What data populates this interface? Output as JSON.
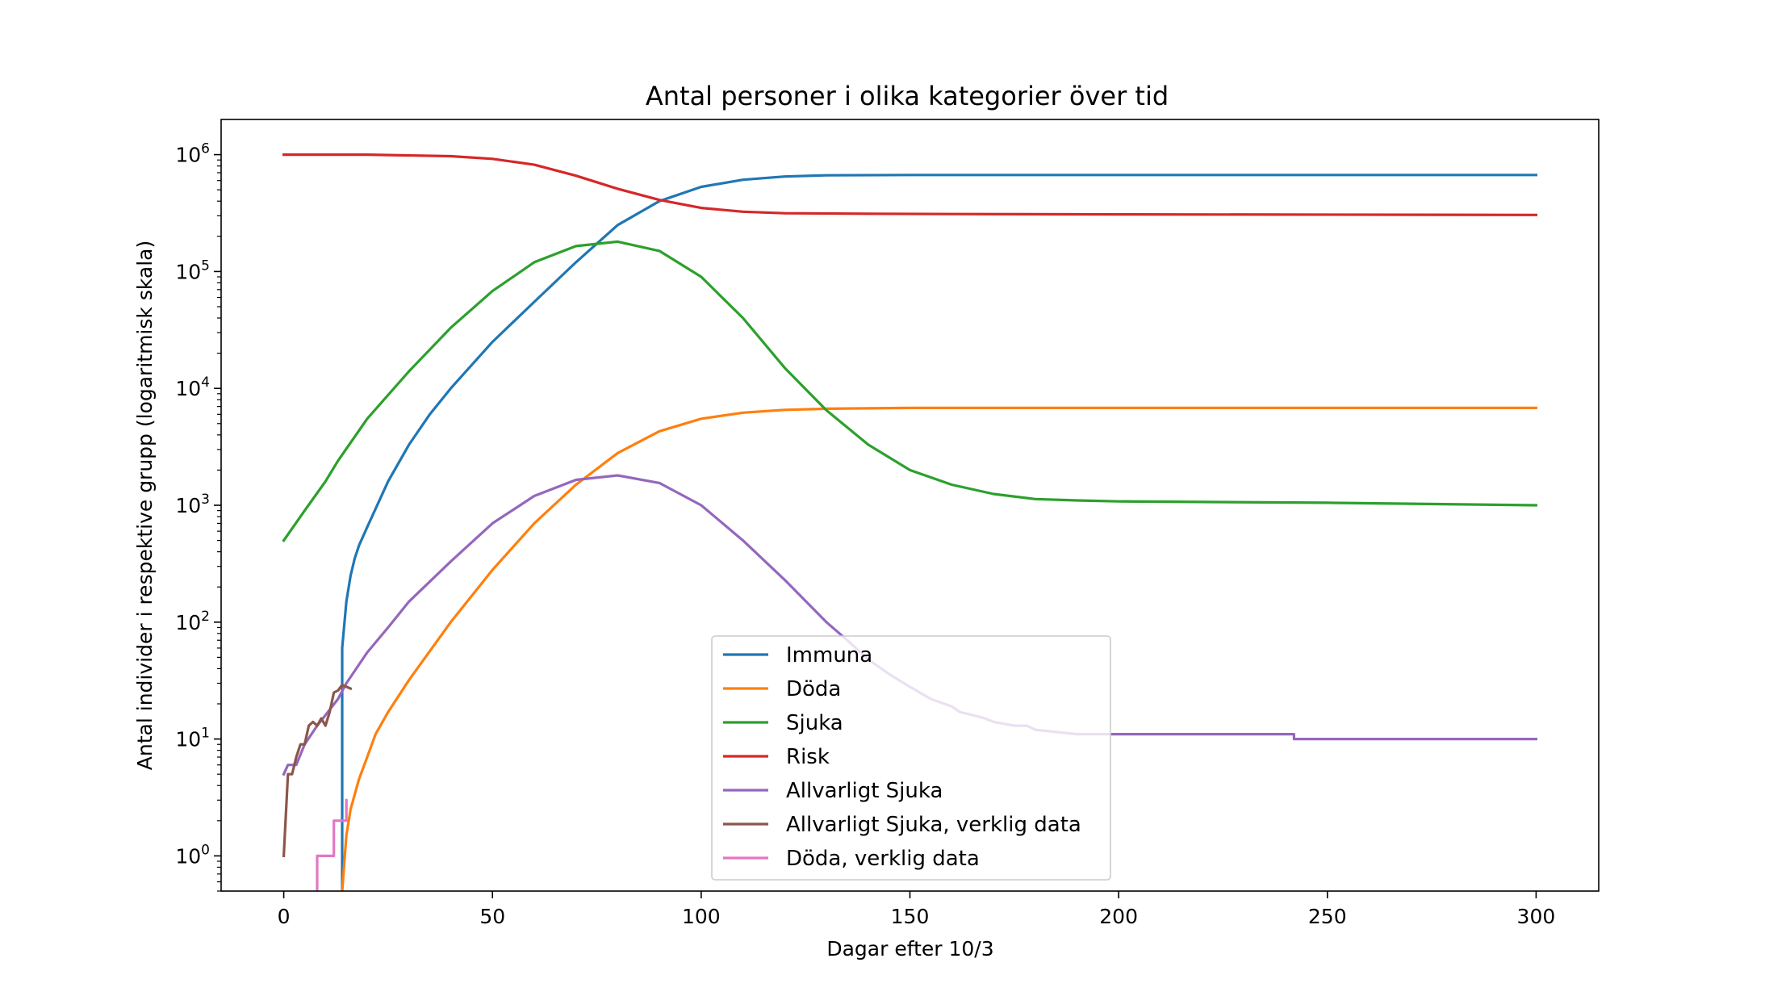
{
  "chart_data": {
    "type": "line",
    "title": "Antal personer i olika kategorier över tid",
    "xlabel": "Dagar efter 10/3",
    "ylabel": "Antal individer i respektive grupp (logaritmisk skala)",
    "xlim": [
      -15,
      315
    ],
    "ylim": [
      0.5,
      2000000
    ],
    "yscale": "log",
    "grid": false,
    "legend_position": "bottom-center",
    "x_ticks": [
      0,
      50,
      100,
      150,
      200,
      250,
      300
    ],
    "y_ticks": [
      {
        "value": 1,
        "base": "10",
        "exp": "0"
      },
      {
        "value": 10,
        "base": "10",
        "exp": "1"
      },
      {
        "value": 100,
        "base": "10",
        "exp": "2"
      },
      {
        "value": 1000,
        "base": "10",
        "exp": "3"
      },
      {
        "value": 10000,
        "base": "10",
        "exp": "4"
      },
      {
        "value": 100000,
        "base": "10",
        "exp": "5"
      },
      {
        "value": 1000000,
        "base": "10",
        "exp": "6"
      }
    ],
    "series": [
      {
        "name": "Immuna",
        "color": "#1f77b4",
        "x": [
          14,
          14,
          15,
          16,
          17,
          18,
          20,
          25,
          30,
          35,
          40,
          50,
          60,
          70,
          80,
          90,
          100,
          110,
          120,
          130,
          150,
          200,
          300
        ],
        "y": [
          0.5,
          60,
          150,
          250,
          350,
          450,
          650,
          1600,
          3300,
          6000,
          10000,
          25000,
          55000,
          120000,
          250000,
          400000,
          530000,
          610000,
          650000,
          665000,
          670000,
          670000,
          670000
        ]
      },
      {
        "name": "Döda",
        "color": "#ff7f0e",
        "x": [
          14,
          15,
          16,
          18,
          20,
          22,
          25,
          30,
          40,
          50,
          60,
          70,
          80,
          90,
          100,
          110,
          120,
          130,
          140,
          150,
          200,
          300
        ],
        "y": [
          0.5,
          1.5,
          2.5,
          4.5,
          7,
          11,
          17,
          32,
          100,
          280,
          700,
          1500,
          2800,
          4300,
          5500,
          6200,
          6550,
          6700,
          6750,
          6800,
          6800,
          6800
        ]
      },
      {
        "name": "Sjuka",
        "color": "#2ca02c",
        "x": [
          0,
          5,
          10,
          13,
          20,
          30,
          40,
          50,
          60,
          70,
          80,
          90,
          100,
          110,
          120,
          130,
          140,
          150,
          160,
          170,
          180,
          190,
          200,
          250,
          300
        ],
        "y": [
          500,
          900,
          1600,
          2400,
          5500,
          14000,
          33000,
          68000,
          120000,
          165000,
          180000,
          150000,
          90000,
          40000,
          15000,
          6500,
          3300,
          2000,
          1500,
          1250,
          1130,
          1100,
          1080,
          1050,
          1000
        ]
      },
      {
        "name": "Risk",
        "color": "#d62728",
        "x": [
          0,
          20,
          40,
          50,
          60,
          70,
          80,
          90,
          100,
          110,
          120,
          140,
          160,
          200,
          300
        ],
        "y": [
          1000000,
          1000000,
          970000,
          920000,
          820000,
          660000,
          510000,
          410000,
          350000,
          325000,
          315000,
          312000,
          310000,
          308000,
          305000
        ]
      },
      {
        "name": "Allvarligt Sjuka",
        "color": "#9467bd",
        "x": [
          0,
          1,
          3,
          5,
          8,
          10,
          13,
          15,
          20,
          25,
          30,
          40,
          50,
          60,
          70,
          80,
          90,
          100,
          110,
          120,
          130,
          135,
          140,
          145,
          150,
          155,
          160,
          162,
          165,
          168,
          170,
          175,
          178,
          180,
          190,
          200,
          242,
          242,
          300
        ],
        "y": [
          5,
          6,
          6,
          9,
          13,
          16,
          22,
          30,
          55,
          90,
          150,
          330,
          700,
          1200,
          1650,
          1800,
          1550,
          1000,
          500,
          230,
          100,
          70,
          48,
          36,
          28,
          22,
          19,
          17,
          16,
          15,
          14,
          13,
          13,
          12,
          11,
          11,
          11,
          10,
          10
        ]
      },
      {
        "name": "Allvarligt Sjuka, verklig data",
        "color": "#8c564b",
        "x": [
          0,
          1,
          2,
          3,
          4,
          5,
          6,
          7,
          8,
          9,
          10,
          11,
          12,
          13,
          14,
          15,
          16
        ],
        "y": [
          1,
          5,
          5,
          7,
          9,
          9,
          13,
          14,
          13,
          15,
          13,
          17,
          25,
          26,
          29,
          28,
          27
        ]
      },
      {
        "name": "Döda, verklig data",
        "color": "#e377c2",
        "x": [
          8,
          8,
          11,
          11,
          12,
          12,
          13,
          13,
          14,
          14,
          15,
          15
        ],
        "y": [
          0.5,
          1,
          1,
          1,
          1,
          2,
          2,
          2,
          2,
          2,
          2,
          3
        ]
      }
    ]
  }
}
